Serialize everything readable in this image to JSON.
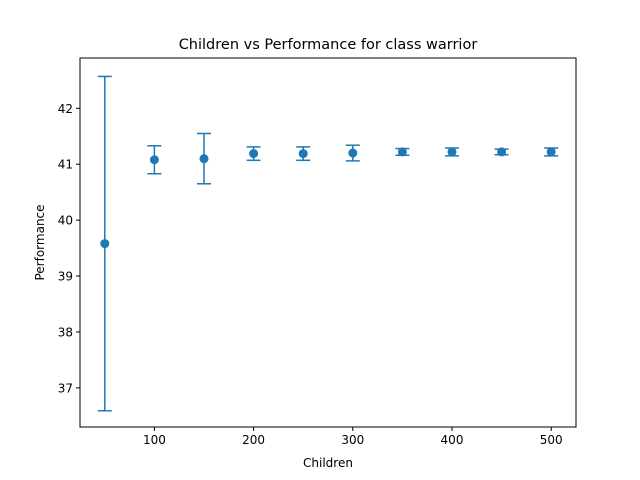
{
  "chart_data": {
    "type": "scatter",
    "title": "Children vs Performance for class warrior",
    "xlabel": "Children",
    "ylabel": "Performance",
    "xlim": [
      25,
      525
    ],
    "ylim": [
      36.3,
      42.9
    ],
    "xticks": [
      100,
      200,
      300,
      400,
      500
    ],
    "yticks": [
      37,
      38,
      39,
      40,
      41,
      42
    ],
    "grid": false,
    "color": "#1f77b4",
    "series": [
      {
        "x": [
          50,
          100,
          150,
          200,
          250,
          300,
          350,
          400,
          450,
          500
        ],
        "y": [
          39.58,
          41.08,
          41.1,
          41.19,
          41.19,
          41.2,
          41.22,
          41.22,
          41.22,
          41.22
        ],
        "yerr": [
          2.99,
          0.25,
          0.45,
          0.12,
          0.12,
          0.14,
          0.06,
          0.07,
          0.05,
          0.07
        ]
      }
    ]
  }
}
